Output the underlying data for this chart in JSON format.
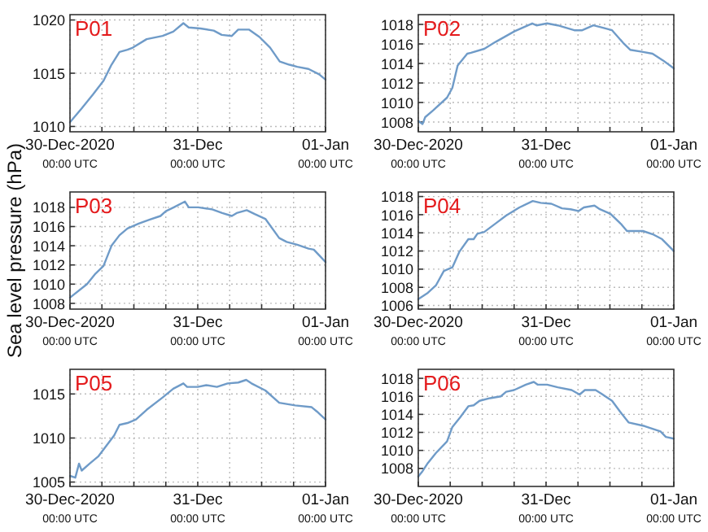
{
  "chart_data": [
    {
      "type": "line",
      "title": "P01",
      "x": [
        "2020-12-30T00:00",
        "2020-12-30T02:12",
        "2020-12-30T04:18",
        "2020-12-30T06:18",
        "2020-12-30T07:48",
        "2020-12-30T09:18",
        "2020-12-30T10:48",
        "2020-12-30T11:48",
        "2020-12-30T14:24",
        "2020-12-30T17:24",
        "2020-12-30T19:24",
        "2020-12-30T21:18",
        "2020-12-30T22:18",
        "2020-12-31T00:30",
        "2020-12-31T03:00",
        "2020-12-31T04:30",
        "2020-12-31T06:24",
        "2020-12-31T07:36",
        "2020-12-31T09:36",
        "2020-12-31T11:36",
        "2020-12-31T13:36",
        "2020-12-31T15:24",
        "2020-12-31T17:12",
        "2020-12-31T18:42",
        "2020-12-31T20:48",
        "2020-12-31T22:48",
        "2021-01-01T00:00"
      ],
      "values": [
        1010.4,
        1011.7,
        1013,
        1014.3,
        1015.8,
        1017,
        1017.2,
        1017.4,
        1018.2,
        1018.5,
        1018.9,
        1019.7,
        1019.3,
        1019.2,
        1019,
        1018.6,
        1018.5,
        1019.1,
        1019.1,
        1018.4,
        1017.4,
        1016.1,
        1015.8,
        1015.6,
        1015.4,
        1014.9,
        1014.4
      ],
      "color": "#6f9bc8",
      "xlim": [
        "2020-12-30T00:00",
        "2021-01-01T00:00"
      ],
      "xticks": [
        {
          "value": "2020-12-30T00:00",
          "label": "30-Dec-2020\n00:00 UTC"
        },
        {
          "value": "2020-12-30T06:00",
          "label": null
        },
        {
          "value": "2020-12-30T12:00",
          "label": null
        },
        {
          "value": "2020-12-30T18:00",
          "label": null
        },
        {
          "value": "2020-12-31T00:00",
          "label": "31-Dec\n00:00 UTC"
        },
        {
          "value": "2020-12-31T06:00",
          "label": null
        },
        {
          "value": "2020-12-31T12:00",
          "label": null
        },
        {
          "value": "2020-12-31T18:00",
          "label": null
        },
        {
          "value": "2021-01-01T00:00",
          "label": "01-Jan\n00:00 UTC"
        }
      ],
      "ylim": [
        1009.5,
        1020.5
      ],
      "yticks": [
        1010,
        1015,
        1020
      ],
      "grid": true
    },
    {
      "type": "line",
      "title": "P02",
      "x": [
        "2020-12-30T00:00",
        "2020-12-30T00:48",
        "2020-12-30T01:18",
        "2020-12-30T02:48",
        "2020-12-30T05:24",
        "2020-12-30T06:24",
        "2020-12-30T07:24",
        "2020-12-30T09:12",
        "2020-12-30T09:54",
        "2020-12-30T12:24",
        "2020-12-30T14:30",
        "2020-12-30T18:06",
        "2020-12-30T21:24",
        "2020-12-30T22:12",
        "2020-12-31T00:12",
        "2020-12-31T02:12",
        "2020-12-31T05:18",
        "2020-12-31T06:48",
        "2020-12-31T08:54",
        "2020-12-31T10:24",
        "2020-12-31T12:24",
        "2020-12-31T14:30",
        "2020-12-31T15:48",
        "2020-12-31T18:00",
        "2020-12-31T20:00",
        "2020-12-31T22:00",
        "2021-01-01T00:00"
      ],
      "values": [
        1008.1,
        1007.8,
        1008.5,
        1009.2,
        1010.5,
        1011.5,
        1013.8,
        1015,
        1015.1,
        1015.5,
        1016.2,
        1017.3,
        1018.1,
        1017.9,
        1018.1,
        1017.9,
        1017.4,
        1017.4,
        1017.9,
        1017.7,
        1017.4,
        1016.1,
        1015.4,
        1015.2,
        1015,
        1014.3,
        1013.5
      ],
      "color": "#6f9bc8",
      "xlim": [
        "2020-12-30T00:00",
        "2021-01-01T00:00"
      ],
      "xticks": [
        {
          "value": "2020-12-30T00:00",
          "label": "30-Dec-2020\n00:00 UTC"
        },
        {
          "value": "2020-12-30T06:00",
          "label": null
        },
        {
          "value": "2020-12-30T12:00",
          "label": null
        },
        {
          "value": "2020-12-30T18:00",
          "label": null
        },
        {
          "value": "2020-12-31T00:00",
          "label": "31-Dec\n00:00 UTC"
        },
        {
          "value": "2020-12-31T06:00",
          "label": null
        },
        {
          "value": "2020-12-31T12:00",
          "label": null
        },
        {
          "value": "2020-12-31T18:00",
          "label": null
        },
        {
          "value": "2021-01-01T00:00",
          "label": "01-Jan\n00:00 UTC"
        }
      ],
      "ylim": [
        1007,
        1019
      ],
      "yticks": [
        1008,
        1010,
        1012,
        1014,
        1016,
        1018
      ],
      "grid": true
    },
    {
      "type": "line",
      "title": "P03",
      "ylabel": "Sea level pressure (hPa)",
      "x": [
        "2020-12-30T00:00",
        "2020-12-30T03:12",
        "2020-12-30T04:48",
        "2020-12-30T06:18",
        "2020-12-30T07:48",
        "2020-12-30T09:18",
        "2020-12-30T10:48",
        "2020-12-30T12:54",
        "2020-12-30T14:54",
        "2020-12-30T17:00",
        "2020-12-30T18:00",
        "2020-12-30T19:30",
        "2020-12-30T21:36",
        "2020-12-30T22:18",
        "2020-12-31T00:06",
        "2020-12-31T02:36",
        "2020-12-31T04:36",
        "2020-12-31T06:24",
        "2020-12-31T07:18",
        "2020-12-31T09:12",
        "2020-12-31T10:42",
        "2020-12-31T12:42",
        "2020-12-31T15:18",
        "2020-12-31T16:42",
        "2020-12-31T18:42",
        "2020-12-31T20:48",
        "2020-12-31T21:48",
        "2020-12-31T23:00",
        "2021-01-01T00:00"
      ],
      "values": [
        1008.6,
        1010,
        1011.1,
        1011.9,
        1014,
        1015.1,
        1015.8,
        1016.3,
        1016.7,
        1017.1,
        1017.6,
        1018,
        1018.6,
        1018,
        1018,
        1017.8,
        1017.4,
        1017.1,
        1017.4,
        1017.7,
        1017.3,
        1016.8,
        1014.8,
        1014.4,
        1014.1,
        1013.7,
        1013.6,
        1012.9,
        1012.3
      ],
      "color": "#6f9bc8",
      "xlim": [
        "2020-12-30T00:00",
        "2021-01-01T00:00"
      ],
      "xticks": [
        {
          "value": "2020-12-30T00:00",
          "label": "30-Dec-2020\n00:00 UTC"
        },
        {
          "value": "2020-12-30T06:00",
          "label": null
        },
        {
          "value": "2020-12-30T12:00",
          "label": null
        },
        {
          "value": "2020-12-30T18:00",
          "label": null
        },
        {
          "value": "2020-12-31T00:00",
          "label": "31-Dec\n00:00 UTC"
        },
        {
          "value": "2020-12-31T06:00",
          "label": null
        },
        {
          "value": "2020-12-31T12:00",
          "label": null
        },
        {
          "value": "2020-12-31T18:00",
          "label": null
        },
        {
          "value": "2021-01-01T00:00",
          "label": "01-Jan\n00:00 UTC"
        }
      ],
      "ylim": [
        1007.4,
        1019.6
      ],
      "yticks": [
        1008,
        1010,
        1012,
        1014,
        1016,
        1018
      ],
      "grid": true
    },
    {
      "type": "line",
      "title": "P04",
      "x": [
        "2020-12-30T00:00",
        "2020-12-30T01:48",
        "2020-12-30T03:18",
        "2020-12-30T04:48",
        "2020-12-30T06:24",
        "2020-12-30T07:42",
        "2020-12-30T09:24",
        "2020-12-30T10:24",
        "2020-12-30T11:06",
        "2020-12-30T12:24",
        "2020-12-30T14:54",
        "2020-12-30T16:30",
        "2020-12-30T19:00",
        "2020-12-30T21:30",
        "2020-12-30T23:00",
        "2020-12-31T01:00",
        "2020-12-31T03:00",
        "2020-12-31T04:36",
        "2020-12-31T06:06",
        "2020-12-31T07:06",
        "2020-12-31T09:06",
        "2020-12-31T10:06",
        "2020-12-31T12:06",
        "2020-12-31T14:12",
        "2020-12-31T15:12",
        "2020-12-31T18:12",
        "2020-12-31T20:12",
        "2020-12-31T21:48",
        "2021-01-01T00:00"
      ],
      "values": [
        1006.7,
        1007.4,
        1008.2,
        1009.8,
        1010.2,
        1011.9,
        1013.3,
        1013.3,
        1013.9,
        1014.1,
        1015.2,
        1015.9,
        1016.8,
        1017.5,
        1017.3,
        1017.2,
        1016.7,
        1016.6,
        1016.4,
        1016.8,
        1017,
        1016.6,
        1016.1,
        1014.9,
        1014.2,
        1014.2,
        1013.8,
        1013.3,
        1012
      ],
      "color": "#6f9bc8",
      "xlim": [
        "2020-12-30T00:00",
        "2021-01-01T00:00"
      ],
      "xticks": [
        {
          "value": "2020-12-30T00:00",
          "label": "30-Dec-2020\n00:00 UTC"
        },
        {
          "value": "2020-12-30T06:00",
          "label": null
        },
        {
          "value": "2020-12-30T12:00",
          "label": null
        },
        {
          "value": "2020-12-30T18:00",
          "label": null
        },
        {
          "value": "2020-12-31T00:00",
          "label": "31-Dec\n00:00 UTC"
        },
        {
          "value": "2020-12-31T06:00",
          "label": null
        },
        {
          "value": "2020-12-31T12:00",
          "label": null
        },
        {
          "value": "2020-12-31T18:00",
          "label": null
        },
        {
          "value": "2021-01-01T00:00",
          "label": "01-Jan\n00:00 UTC"
        }
      ],
      "ylim": [
        1005.6,
        1018.5
      ],
      "yticks": [
        1006,
        1008,
        1010,
        1012,
        1014,
        1016,
        1018
      ],
      "grid": true
    },
    {
      "type": "line",
      "title": "P05",
      "x": [
        "2020-12-30T00:00",
        "2020-12-30T01:00",
        "2020-12-30T01:42",
        "2020-12-30T02:12",
        "2020-12-30T03:42",
        "2020-12-30T05:18",
        "2020-12-30T06:48",
        "2020-12-30T08:18",
        "2020-12-30T09:18",
        "2020-12-30T10:48",
        "2020-12-30T12:24",
        "2020-12-30T14:24",
        "2020-12-30T17:24",
        "2020-12-30T19:24",
        "2020-12-30T21:18",
        "2020-12-30T22:00",
        "2020-12-31T00:00",
        "2020-12-31T01:36",
        "2020-12-31T03:36",
        "2020-12-31T05:36",
        "2020-12-31T07:36",
        "2020-12-31T09:06",
        "2020-12-31T10:06",
        "2020-12-31T12:42",
        "2020-12-31T15:18",
        "2020-12-31T18:18",
        "2020-12-31T21:24",
        "2020-12-31T22:24",
        "2021-01-01T00:00"
      ],
      "values": [
        1005.7,
        1005.5,
        1007.1,
        1006.3,
        1007.1,
        1007.9,
        1009.1,
        1010.3,
        1011.5,
        1011.7,
        1012.1,
        1013.2,
        1014.6,
        1015.6,
        1016.2,
        1015.8,
        1015.8,
        1016,
        1015.8,
        1016.2,
        1016.3,
        1016.6,
        1016.2,
        1015.4,
        1014,
        1013.7,
        1013.5,
        1013,
        1012.1
      ],
      "color": "#6f9bc8",
      "xlim": [
        "2020-12-30T00:00",
        "2021-01-01T00:00"
      ],
      "xticks": [
        {
          "value": "2020-12-30T00:00",
          "label": "30-Dec-2020\n00:00 UTC"
        },
        {
          "value": "2020-12-30T06:00",
          "label": null
        },
        {
          "value": "2020-12-30T12:00",
          "label": null
        },
        {
          "value": "2020-12-30T18:00",
          "label": null
        },
        {
          "value": "2020-12-31T00:00",
          "label": "31-Dec\n00:00 UTC"
        },
        {
          "value": "2020-12-31T06:00",
          "label": null
        },
        {
          "value": "2020-12-31T12:00",
          "label": null
        },
        {
          "value": "2020-12-31T18:00",
          "label": null
        },
        {
          "value": "2021-01-01T00:00",
          "label": "01-Jan\n00:00 UTC"
        }
      ],
      "ylim": [
        1004.5,
        1017.8
      ],
      "yticks": [
        1005,
        1010,
        1015
      ],
      "grid": true
    },
    {
      "type": "line",
      "title": "P06",
      "x": [
        "2020-12-30T00:00",
        "2020-12-30T00:48",
        "2020-12-30T01:48",
        "2020-12-30T03:18",
        "2020-12-30T05:24",
        "2020-12-30T06:24",
        "2020-12-30T07:54",
        "2020-12-30T09:24",
        "2020-12-30T10:24",
        "2020-12-30T11:30",
        "2020-12-30T13:30",
        "2020-12-30T15:30",
        "2020-12-30T16:30",
        "2020-12-30T18:00",
        "2020-12-30T20:12",
        "2020-12-30T21:42",
        "2020-12-30T22:24",
        "2020-12-31T00:12",
        "2020-12-31T02:12",
        "2020-12-31T04:48",
        "2020-12-31T06:18",
        "2020-12-31T07:18",
        "2020-12-31T09:18",
        "2020-12-31T10:24",
        "2020-12-31T12:24",
        "2020-12-31T13:54",
        "2020-12-31T15:30",
        "2020-12-31T18:30",
        "2020-12-31T21:30",
        "2020-12-31T22:30",
        "2021-01-01T00:00"
      ],
      "values": [
        1007.1,
        1007.7,
        1008.6,
        1009.7,
        1011,
        1012.6,
        1013.7,
        1014.9,
        1015,
        1015.5,
        1015.8,
        1016,
        1016.5,
        1016.7,
        1017.3,
        1017.6,
        1017.3,
        1017.3,
        1017,
        1016.7,
        1016.2,
        1016.7,
        1016.7,
        1016.3,
        1015.5,
        1014.3,
        1013.1,
        1012.7,
        1012.1,
        1011.5,
        1011.3
      ],
      "color": "#6f9bc8",
      "xlim": [
        "2020-12-30T00:00",
        "2021-01-01T00:00"
      ],
      "xticks": [
        {
          "value": "2020-12-30T00:00",
          "label": "30-Dec-2020\n00:00 UTC"
        },
        {
          "value": "2020-12-30T06:00",
          "label": null
        },
        {
          "value": "2020-12-30T12:00",
          "label": null
        },
        {
          "value": "2020-12-30T18:00",
          "label": null
        },
        {
          "value": "2020-12-31T00:00",
          "label": "31-Dec\n00:00 UTC"
        },
        {
          "value": "2020-12-31T06:00",
          "label": null
        },
        {
          "value": "2020-12-31T12:00",
          "label": null
        },
        {
          "value": "2020-12-31T18:00",
          "label": null
        },
        {
          "value": "2021-01-01T00:00",
          "label": "01-Jan\n00:00 UTC"
        }
      ],
      "ylim": [
        1006,
        1019
      ],
      "yticks": [
        1008,
        1010,
        1012,
        1014,
        1016,
        1018
      ],
      "grid": true
    }
  ]
}
